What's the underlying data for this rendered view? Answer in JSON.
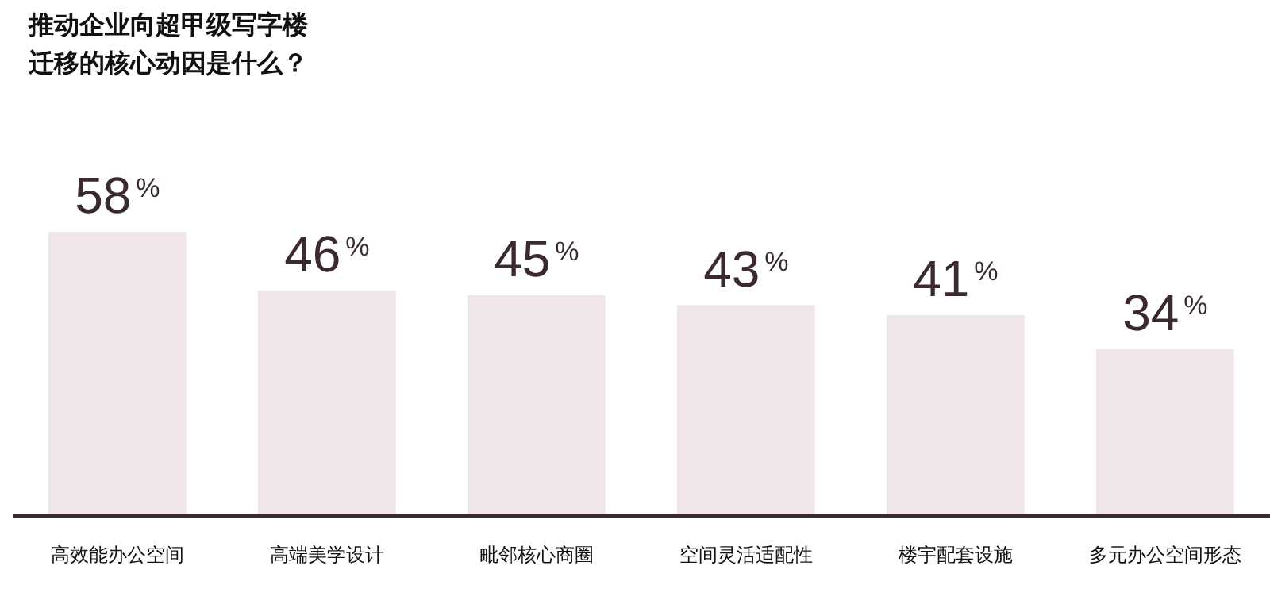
{
  "chart_data": {
    "type": "bar",
    "title": "推动企业向超甲级写字楼迁移的核心动因是什么？",
    "categories": [
      "高效能办公空间",
      "高端美学设计",
      "毗邻核心商圈",
      "空间灵活适配性",
      "楼宇配套设施",
      "多元办公空间形态"
    ],
    "values": [
      58,
      46,
      45,
      43,
      41,
      34
    ],
    "value_labels": [
      "58$^{%}$",
      "46$^{%}$",
      "45$^{%}$",
      "43$^{%}$",
      "41$^{%}$",
      "34$^{%}$"
    ],
    "color": "#f1e5ec",
    "grid": false,
    "legend": false
  }
}
